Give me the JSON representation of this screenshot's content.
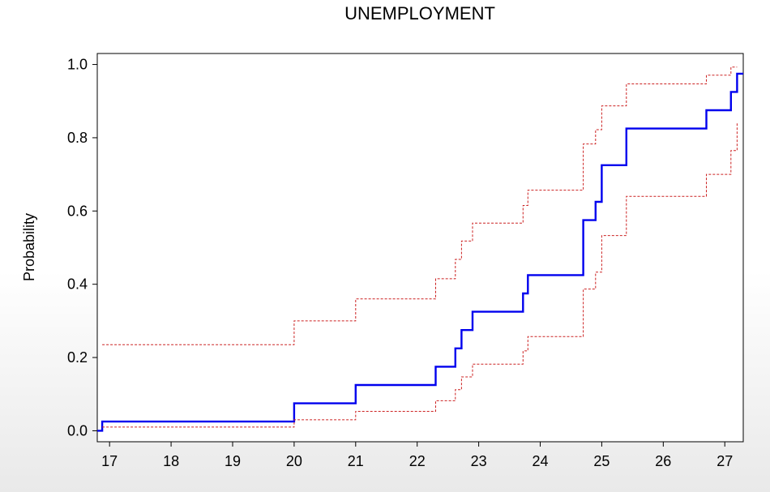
{
  "chart_data": {
    "type": "line",
    "title": "UNEMPLOYMENT",
    "xlabel": "",
    "ylabel": "Probability",
    "xlim": [
      16.8,
      27.3
    ],
    "ylim": [
      -0.03,
      1.03
    ],
    "grid": false,
    "x_ticks": [
      17,
      18,
      19,
      20,
      21,
      22,
      23,
      24,
      25,
      26,
      27
    ],
    "y_ticks": [
      "0.0",
      "0.2",
      "0.4",
      "0.6",
      "0.8",
      "1.0"
    ],
    "y_tick_values": [
      0.0,
      0.2,
      0.4,
      0.6,
      0.8,
      1.0
    ],
    "series": [
      {
        "role": "ecdf",
        "color": "#0000ee",
        "style": "solid",
        "x": [
          16.8,
          16.88,
          20.0,
          21.0,
          22.3,
          22.62,
          22.72,
          22.9,
          23.72,
          23.8,
          24.7,
          24.9,
          25.0,
          25.4,
          26.7,
          27.1,
          27.2,
          27.3
        ],
        "y": [
          0.0,
          0.025,
          0.075,
          0.125,
          0.175,
          0.225,
          0.275,
          0.325,
          0.375,
          0.425,
          0.575,
          0.625,
          0.725,
          0.825,
          0.875,
          0.925,
          0.975,
          0.975
        ]
      },
      {
        "role": "upper-band",
        "color": "#cc2222",
        "style": "dashed",
        "x": [
          16.88,
          20.0,
          21.0,
          22.3,
          22.62,
          22.72,
          22.9,
          23.72,
          23.8,
          24.7,
          24.9,
          25.0,
          25.4,
          26.7,
          27.1,
          27.2
        ],
        "y": [
          0.235,
          0.3,
          0.36,
          0.415,
          0.468,
          0.518,
          0.567,
          0.615,
          0.657,
          0.783,
          0.822,
          0.887,
          0.947,
          0.971,
          0.993,
          0.993
        ]
      },
      {
        "role": "lower-band",
        "color": "#cc2222",
        "style": "dashed",
        "x": [
          16.88,
          20.0,
          21.0,
          22.3,
          22.62,
          22.72,
          22.9,
          23.72,
          23.8,
          24.7,
          24.9,
          25.0,
          25.4,
          26.7,
          27.1,
          27.2
        ],
        "y": [
          0.01,
          0.03,
          0.053,
          0.082,
          0.112,
          0.147,
          0.182,
          0.218,
          0.257,
          0.387,
          0.433,
          0.533,
          0.64,
          0.7,
          0.765,
          0.84
        ]
      }
    ]
  }
}
